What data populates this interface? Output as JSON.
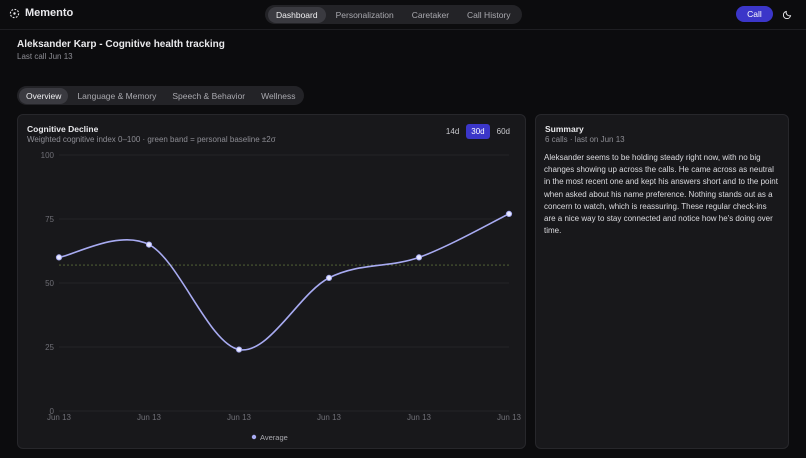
{
  "topbar": {
    "app_name": "Memento",
    "nav": [
      "Dashboard",
      "Personalization",
      "Caretaker",
      "Call History"
    ],
    "call_button": "Call"
  },
  "header": {
    "title": "Aleksander Karp - Cognitive health tracking",
    "subtitle": "Last call Jun 13"
  },
  "tabs": [
    "Overview",
    "Language & Memory",
    "Speech & Behavior",
    "Wellness"
  ],
  "ranges": [
    "14d",
    "30d",
    "60d"
  ],
  "chart_data": {
    "type": "line",
    "title": "Cognitive Decline",
    "subtitle": "Weighted cognitive index 0–100 · green band = personal baseline ±2σ",
    "categories": [
      "Jun 13",
      "Jun 13",
      "Jun 13",
      "Jun 13",
      "Jun 13",
      "Jun 13"
    ],
    "series": [
      {
        "name": "Average",
        "color": "#a8abf2",
        "values": [
          60,
          65,
          24,
          52,
          60,
          77
        ]
      }
    ],
    "baseline": 57,
    "ylim": [
      0,
      100
    ],
    "yticks": [
      0,
      25,
      50,
      75,
      100
    ],
    "grid": true
  },
  "summary": {
    "title": "Summary",
    "meta": "6 calls · last on Jun 13",
    "text": "Aleksander seems to be holding steady right now, with no big changes showing up across the calls. He came across as neutral in the most recent one and kept his answers short and to the point when asked about his name preference. Nothing stands out as a concern to watch, which is reassuring. These regular check-ins are a nice way to stay connected and notice how he's doing over time."
  }
}
